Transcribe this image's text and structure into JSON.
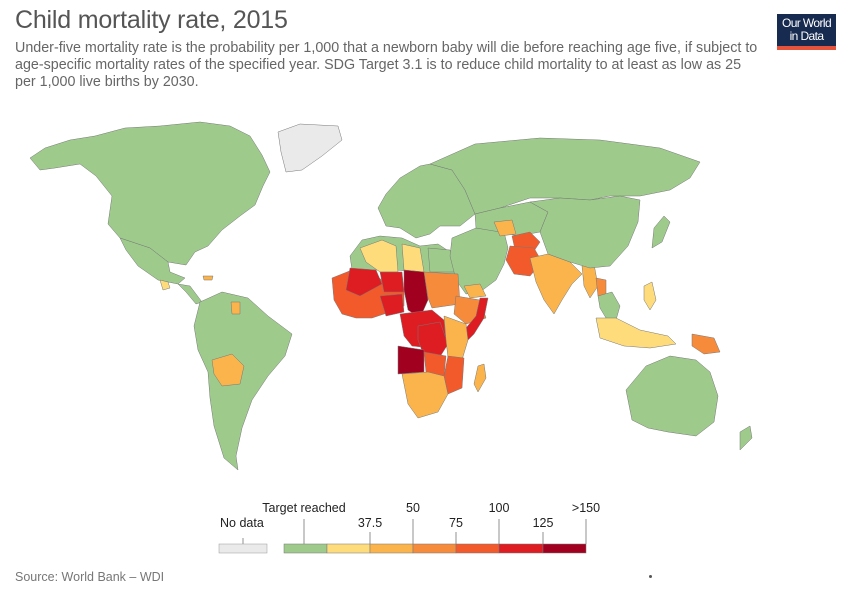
{
  "title": "Child mortality rate, 2015",
  "subtitle": "Under-five mortality rate is the probability per 1,000 that a newborn baby will die before reaching age five, if subject to age-specific mortality rates of the specified year. SDG Target 3.1 is to reduce child mortality to at least as low as 25 per 1,000 live births by 2030.",
  "logo": {
    "line1": "Our World",
    "line2": "in Data",
    "bg_color": "#172a4f",
    "accent_color": "#e5533d"
  },
  "source": "Source: World Bank – WDI",
  "legend": {
    "no_data_label": "No data",
    "no_data_color": "#eaeaea",
    "top_labels": [
      "Target reached",
      "50",
      "100",
      ">150"
    ],
    "bottom_labels": [
      "37.5",
      "75",
      "125"
    ],
    "bins": [
      {
        "color": "#9ecb8c"
      },
      {
        "color": "#fedc7c"
      },
      {
        "color": "#fbb44c"
      },
      {
        "color": "#f68b3b"
      },
      {
        "color": "#f25a2c"
      },
      {
        "color": "#de1d23"
      },
      {
        "color": "#a2001f"
      }
    ]
  },
  "map": {
    "ocean_color": "#ffffff",
    "border_color": "#777777",
    "regions": [
      {
        "name": "north-america",
        "color": "#9ecb8c"
      },
      {
        "name": "greenland",
        "color": "#eaeaea"
      },
      {
        "name": "mexico",
        "color": "#9ecb8c"
      },
      {
        "name": "central-america",
        "color": "#9ecb8c"
      },
      {
        "name": "guatemala",
        "color": "#fedc7c"
      },
      {
        "name": "haiti",
        "color": "#fbb44c"
      },
      {
        "name": "south-america",
        "color": "#9ecb8c"
      },
      {
        "name": "guyana",
        "color": "#fbb44c"
      },
      {
        "name": "bolivia",
        "color": "#fbb44c"
      },
      {
        "name": "europe",
        "color": "#9ecb8c"
      },
      {
        "name": "russia",
        "color": "#9ecb8c"
      },
      {
        "name": "north-africa",
        "color": "#9ecb8c"
      },
      {
        "name": "algeria",
        "color": "#fedc7c"
      },
      {
        "name": "libya",
        "color": "#fedc7c"
      },
      {
        "name": "egypt",
        "color": "#9ecb8c"
      },
      {
        "name": "middle-east",
        "color": "#9ecb8c"
      },
      {
        "name": "yemen",
        "color": "#fbb44c"
      },
      {
        "name": "west-africa",
        "color": "#f25a2c"
      },
      {
        "name": "mali",
        "color": "#de1d23"
      },
      {
        "name": "niger",
        "color": "#de1d23"
      },
      {
        "name": "chad",
        "color": "#a2001f"
      },
      {
        "name": "nigeria",
        "color": "#de1d23"
      },
      {
        "name": "sudan",
        "color": "#f68b3b"
      },
      {
        "name": "ethiopia",
        "color": "#f68b3b"
      },
      {
        "name": "somalia",
        "color": "#de1d23"
      },
      {
        "name": "central-africa",
        "color": "#de1d23"
      },
      {
        "name": "drc",
        "color": "#de1d23"
      },
      {
        "name": "angola",
        "color": "#a2001f"
      },
      {
        "name": "east-africa",
        "color": "#fbb44c"
      },
      {
        "name": "mozambique",
        "color": "#f25a2c"
      },
      {
        "name": "zambia",
        "color": "#f25a2c"
      },
      {
        "name": "southern-africa",
        "color": "#fbb44c"
      },
      {
        "name": "madagascar",
        "color": "#fbb44c"
      },
      {
        "name": "central-asia",
        "color": "#9ecb8c"
      },
      {
        "name": "turkmenistan",
        "color": "#fbb44c"
      },
      {
        "name": "afghanistan",
        "color": "#f25a2c"
      },
      {
        "name": "pakistan",
        "color": "#f25a2c"
      },
      {
        "name": "india",
        "color": "#fbb44c"
      },
      {
        "name": "myanmar",
        "color": "#fbb44c"
      },
      {
        "name": "laos",
        "color": "#f68b3b"
      },
      {
        "name": "china",
        "color": "#9ecb8c"
      },
      {
        "name": "southeast-asia",
        "color": "#9ecb8c"
      },
      {
        "name": "philippines",
        "color": "#fedc7c"
      },
      {
        "name": "indonesia",
        "color": "#fedc7c"
      },
      {
        "name": "papua-new-guinea",
        "color": "#f68b3b"
      },
      {
        "name": "japan",
        "color": "#9ecb8c"
      },
      {
        "name": "australia",
        "color": "#9ecb8c"
      },
      {
        "name": "new-zealand",
        "color": "#9ecb8c"
      }
    ]
  }
}
